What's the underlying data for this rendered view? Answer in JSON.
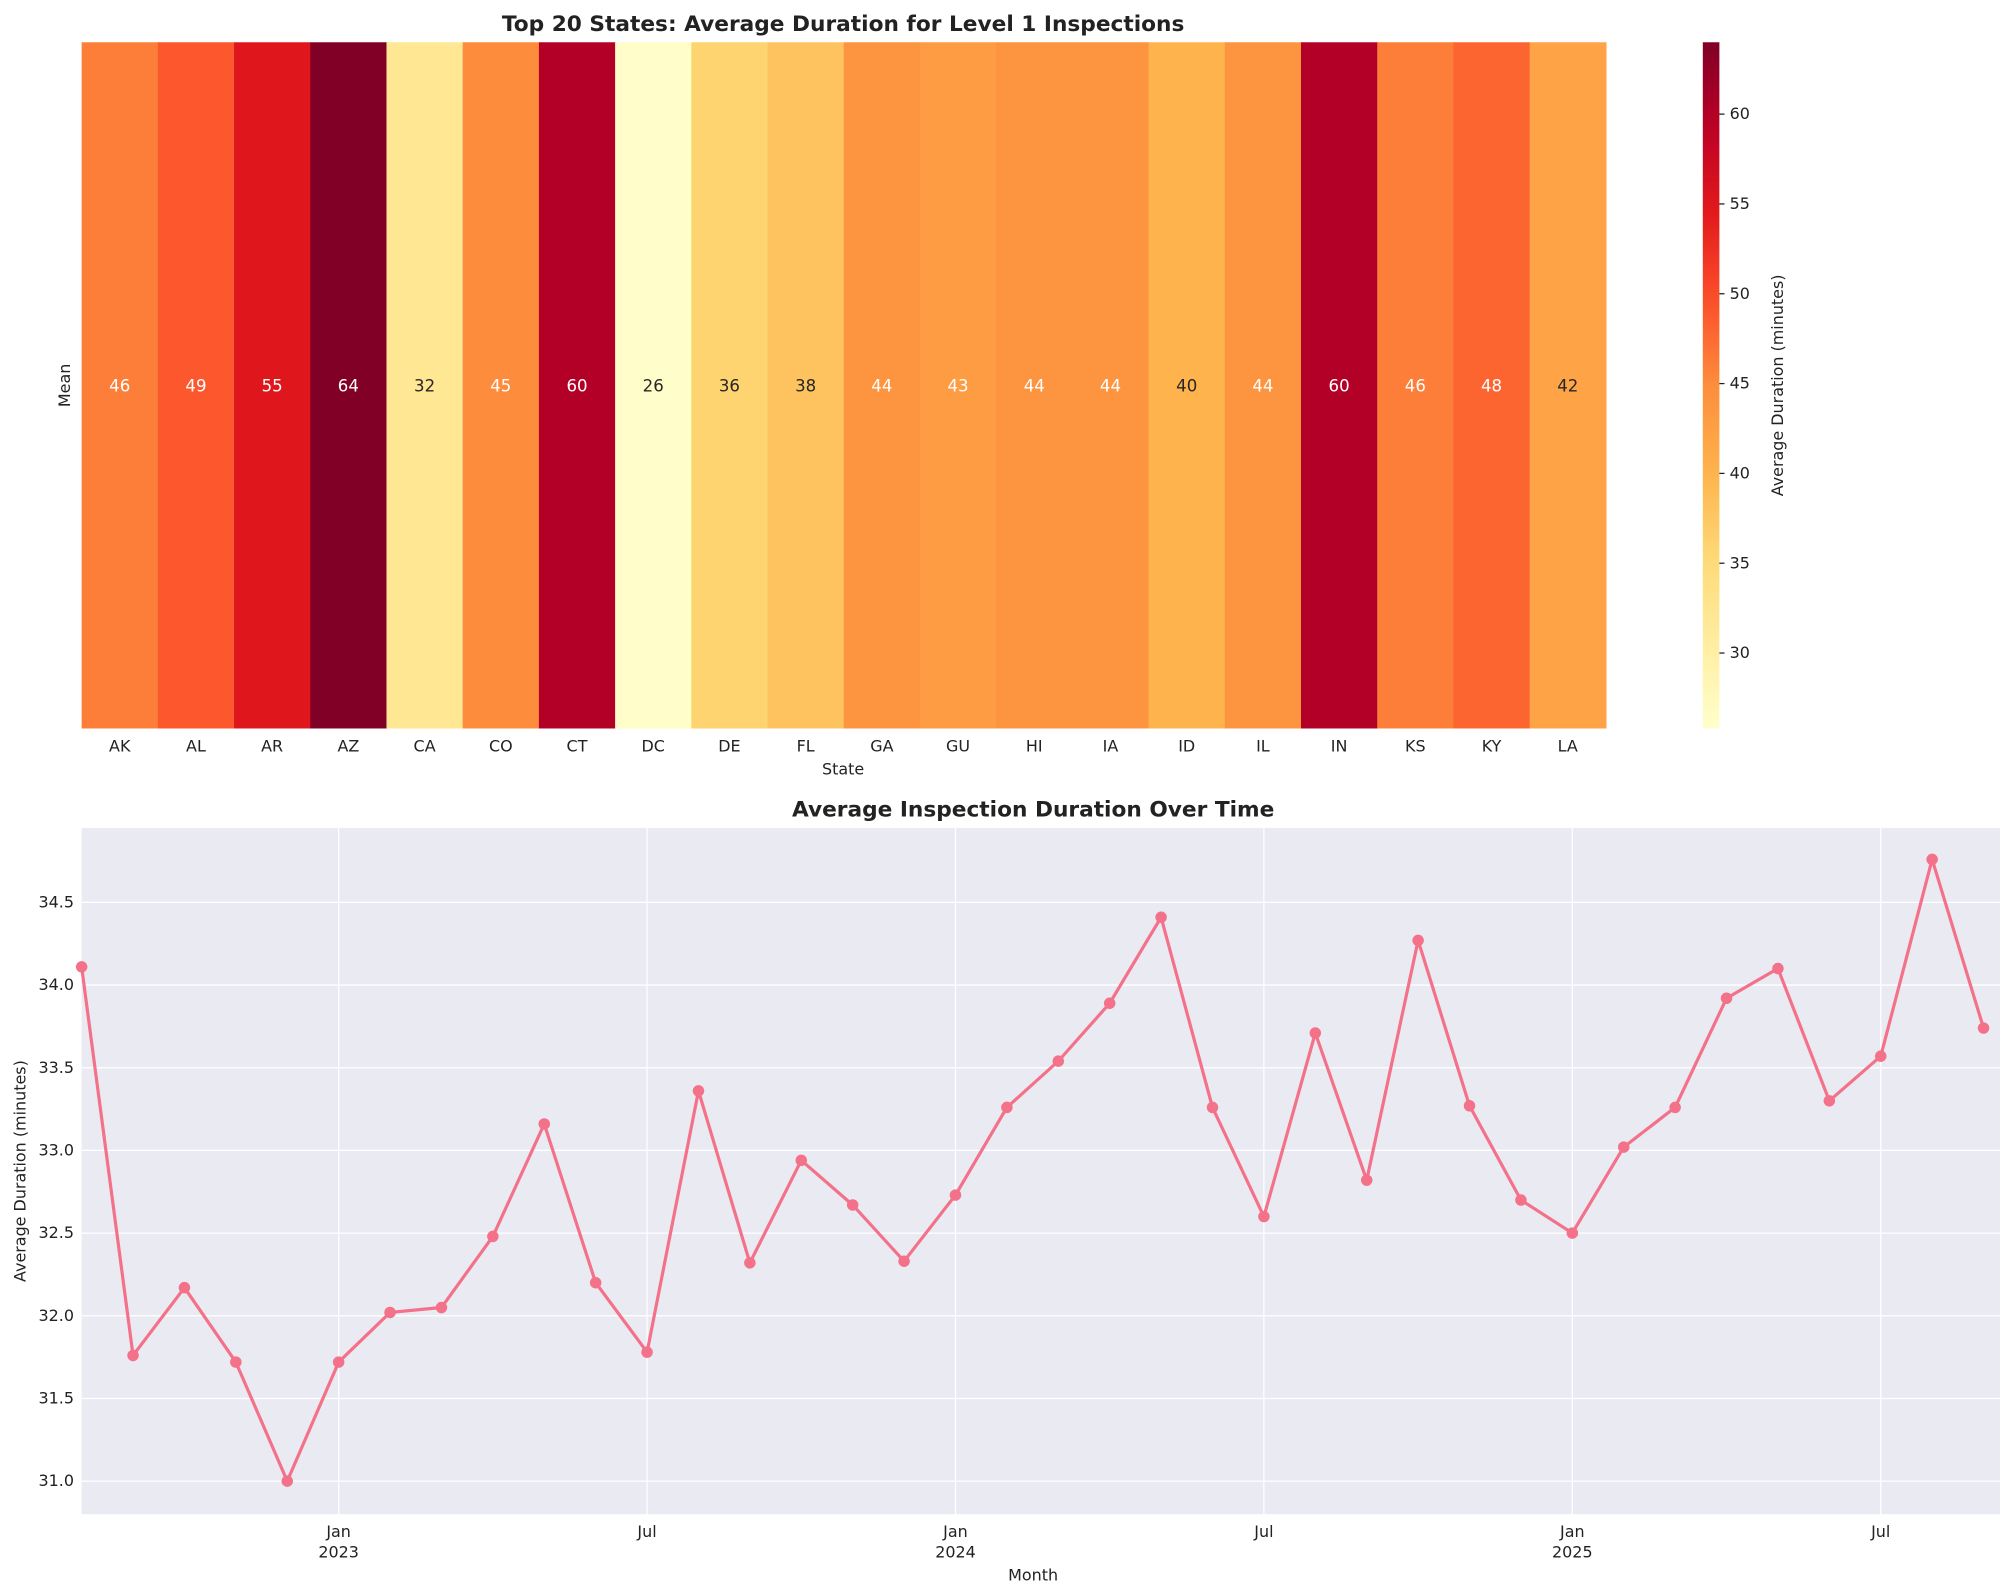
{
  "chart_data": [
    {
      "type": "heatmap",
      "title": "Top 20 States: Average Duration for Level 1 Inspections",
      "xlabel": "State",
      "ylabel": "Mean",
      "categories": [
        "AK",
        "AL",
        "AR",
        "AZ",
        "CA",
        "CO",
        "CT",
        "DC",
        "DE",
        "FL",
        "GA",
        "GU",
        "HI",
        "IA",
        "ID",
        "IL",
        "IN",
        "KS",
        "KY",
        "LA"
      ],
      "values": [
        46,
        49,
        55,
        64,
        32,
        45,
        60,
        26,
        36,
        38,
        44,
        43,
        44,
        44,
        40,
        44,
        60,
        46,
        48,
        42
      ],
      "colormap": "YlOrRd",
      "colorbar": {
        "label": "Average Duration (minutes)",
        "range": [
          25.8,
          64
        ],
        "ticks": [
          30,
          35,
          40,
          45,
          50,
          55,
          60
        ]
      }
    },
    {
      "type": "line",
      "title": "Average Inspection Duration Over Time",
      "xlabel": "Month",
      "ylabel": "Average Duration (minutes)",
      "color": "#f37189",
      "grid": true,
      "ylim": [
        30.8,
        34.95
      ],
      "yticks": [
        "31.0",
        "31.5",
        "32.0",
        "32.5",
        "33.0",
        "33.5",
        "34.0",
        "34.5"
      ],
      "xticks": [
        {
          "date": "2023-01",
          "label": "Jan",
          "sub": "2023"
        },
        {
          "date": "2023-07",
          "label": "Jul",
          "sub": ""
        },
        {
          "date": "2024-01",
          "label": "Jan",
          "sub": "2024"
        },
        {
          "date": "2024-07",
          "label": "Jul",
          "sub": ""
        },
        {
          "date": "2025-01",
          "label": "Jan",
          "sub": "2025"
        },
        {
          "date": "2025-07",
          "label": "Jul",
          "sub": ""
        }
      ],
      "x": [
        "2022-08",
        "2022-09",
        "2022-10",
        "2022-11",
        "2022-12",
        "2023-01",
        "2023-02",
        "2023-03",
        "2023-04",
        "2023-05",
        "2023-06",
        "2023-07",
        "2023-08",
        "2023-09",
        "2023-10",
        "2023-11",
        "2023-12",
        "2024-01",
        "2024-02",
        "2024-03",
        "2024-04",
        "2024-05",
        "2024-06",
        "2024-07",
        "2024-08",
        "2024-09",
        "2024-10",
        "2024-11",
        "2024-12",
        "2025-01",
        "2025-02",
        "2025-03",
        "2025-04",
        "2025-05",
        "2025-06",
        "2025-07",
        "2025-08",
        "2025-09"
      ],
      "y": [
        34.11,
        31.76,
        32.17,
        31.72,
        31.0,
        31.72,
        32.02,
        32.05,
        32.48,
        33.16,
        32.2,
        31.78,
        33.36,
        32.32,
        32.94,
        32.67,
        32.33,
        32.73,
        33.26,
        33.54,
        33.89,
        34.41,
        33.26,
        32.6,
        33.71,
        32.82,
        34.27,
        33.27,
        32.7,
        32.5,
        33.02,
        33.26,
        33.92,
        34.1,
        33.3,
        33.57,
        34.76,
        33.74
      ]
    }
  ]
}
